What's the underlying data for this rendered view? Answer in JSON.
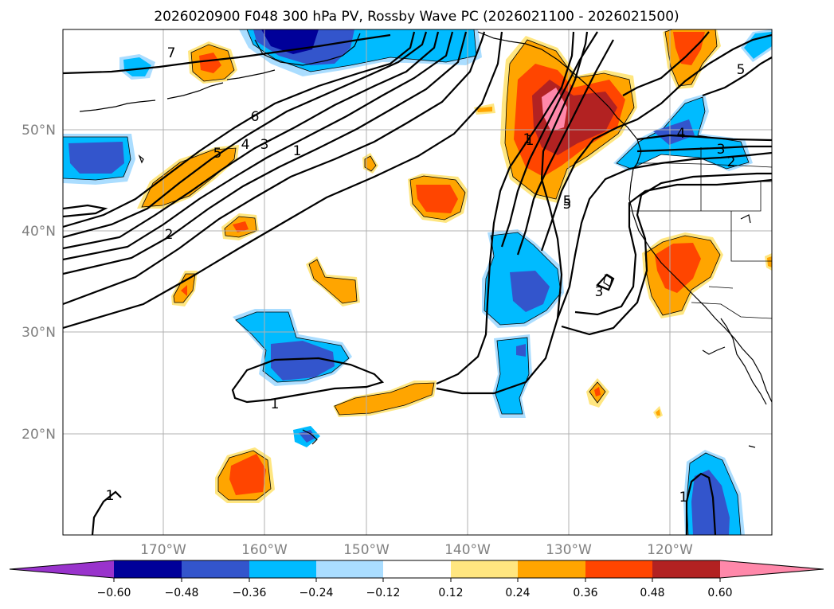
{
  "title": "2026020900 F048 300 hPa PV, Rossby Wave PC (2026021100 - 2026021500)",
  "latitude_labels": [
    "50°N",
    "40°N",
    "30°N",
    "20°N"
  ],
  "longitude_labels": [
    "170°W",
    "160°W",
    "150°W",
    "140°W",
    "130°W",
    "120°W"
  ],
  "colorbar": {
    "colors": {
      "extend_min": "#9933cc",
      "n060": "#000099",
      "n048": "#3355cc",
      "n036": "#00bbff",
      "n024": "#aaddff",
      "zero": "#ffffff",
      "p012": "#ffe680",
      "p024": "#ffa500",
      "p036": "#ff4500",
      "p048": "#b22222",
      "extend_max": "#ff88aa"
    },
    "ticks": [
      "−0.60",
      "−0.48",
      "−0.36",
      "−0.24",
      "−0.12",
      "0.12",
      "0.24",
      "0.36",
      "0.48",
      "0.60"
    ]
  },
  "contour_labels": [
    "7",
    "6",
    "5",
    "4",
    "3",
    "1",
    "2",
    "1",
    "5",
    "1",
    "1",
    "5",
    "3",
    "4",
    "3",
    "2",
    "5",
    "1",
    "1"
  ]
}
